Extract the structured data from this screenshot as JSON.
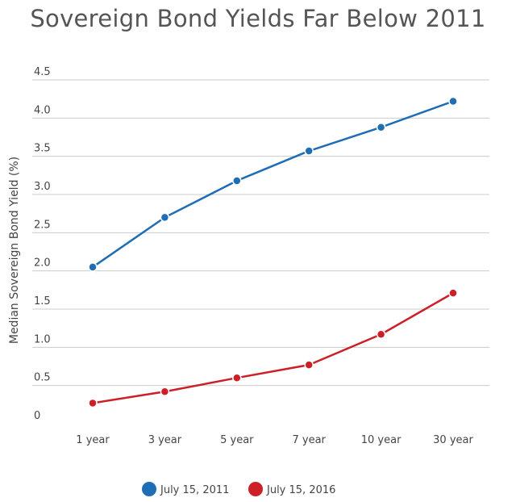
{
  "chart_data": {
    "type": "line",
    "title": "Sovereign Bond Yields Far Below 2011",
    "xlabel": "",
    "ylabel": "Median Sovereign Bond Yield (%)",
    "categories": [
      "1 year",
      "3 year",
      "5 year",
      "7 year",
      "10 year",
      "30 year"
    ],
    "y_ticks": [
      "0",
      "0.5",
      "1.0",
      "1.5",
      "2.0",
      "2.5",
      "3.0",
      "3.5",
      "4.0",
      "4.5"
    ],
    "ylim": [
      0,
      4.5
    ],
    "grid": true,
    "legend_position": "bottom-center",
    "series": [
      {
        "name": "July 15, 2011",
        "color": "#1f6db4",
        "values": [
          2.05,
          2.7,
          3.18,
          3.57,
          3.88,
          4.22
        ]
      },
      {
        "name": "July 15, 2016",
        "color": "#cc1f28",
        "values": [
          0.27,
          0.42,
          0.6,
          0.77,
          1.17,
          1.71
        ]
      }
    ]
  }
}
